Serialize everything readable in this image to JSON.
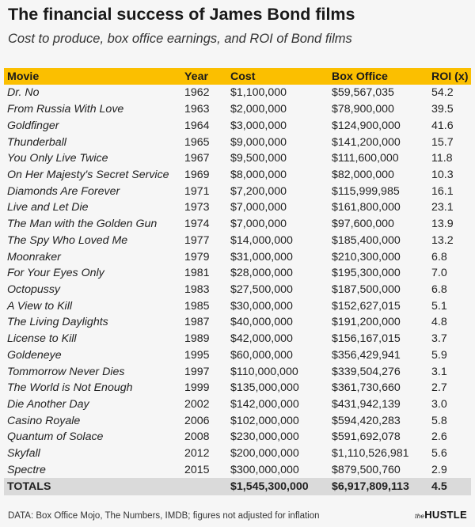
{
  "title": "The financial success of James Bond films",
  "subtitle": "Cost to produce, box office earnings, and ROI of Bond films",
  "chart_data": {
    "type": "table",
    "columns": [
      "Movie",
      "Year",
      "Cost",
      "Box Office",
      "ROI (x)"
    ],
    "rows": [
      [
        "Dr. No",
        "1962",
        "$1,100,000",
        "$59,567,035",
        "54.2"
      ],
      [
        "From Russia With Love",
        "1963",
        "$2,000,000",
        "$78,900,000",
        "39.5"
      ],
      [
        "Goldfinger",
        "1964",
        "$3,000,000",
        "$124,900,000",
        "41.6"
      ],
      [
        "Thunderball",
        "1965",
        "$9,000,000",
        "$141,200,000",
        "15.7"
      ],
      [
        "You Only Live Twice",
        "1967",
        "$9,500,000",
        "$111,600,000",
        "11.8"
      ],
      [
        "On Her Majesty's Secret Service",
        "1969",
        "$8,000,000",
        "$82,000,000",
        "10.3"
      ],
      [
        "Diamonds Are Forever",
        "1971",
        "$7,200,000",
        "$115,999,985",
        "16.1"
      ],
      [
        "Live and Let Die",
        "1973",
        "$7,000,000",
        "$161,800,000",
        "23.1"
      ],
      [
        "The Man with the Golden Gun",
        "1974",
        "$7,000,000",
        "$97,600,000",
        "13.9"
      ],
      [
        "The Spy Who Loved Me",
        "1977",
        "$14,000,000",
        "$185,400,000",
        "13.2"
      ],
      [
        "Moonraker",
        "1979",
        "$31,000,000",
        "$210,300,000",
        "6.8"
      ],
      [
        "For Your Eyes Only",
        "1981",
        "$28,000,000",
        "$195,300,000",
        "7.0"
      ],
      [
        "Octopussy",
        "1983",
        "$27,500,000",
        "$187,500,000",
        "6.8"
      ],
      [
        "A View to Kill",
        "1985",
        "$30,000,000",
        "$152,627,015",
        "5.1"
      ],
      [
        "The Living Daylights",
        "1987",
        "$40,000,000",
        "$191,200,000",
        "4.8"
      ],
      [
        "License to Kill",
        "1989",
        "$42,000,000",
        "$156,167,015",
        "3.7"
      ],
      [
        "Goldeneye",
        "1995",
        "$60,000,000",
        "$356,429,941",
        "5.9"
      ],
      [
        "Tommorrow Never Dies",
        "1997",
        "$110,000,000",
        "$339,504,276",
        "3.1"
      ],
      [
        "The World is Not Enough",
        "1999",
        "$135,000,000",
        "$361,730,660",
        "2.7"
      ],
      [
        "Die Another Day",
        "2002",
        "$142,000,000",
        "$431,942,139",
        "3.0"
      ],
      [
        "Casino Royale",
        "2006",
        "$102,000,000",
        "$594,420,283",
        "5.8"
      ],
      [
        "Quantum of Solace",
        "2008",
        "$230,000,000",
        "$591,692,078",
        "2.6"
      ],
      [
        "Skyfall",
        "2012",
        "$200,000,000",
        "$1,110,526,981",
        "5.6"
      ],
      [
        "Spectre",
        "2015",
        "$300,000,000",
        "$879,500,760",
        "2.9"
      ]
    ],
    "totals": [
      "TOTALS",
      "",
      "$1,545,300,000",
      "$6,917,809,113",
      "4.5"
    ],
    "header_color": "#fbbf00",
    "totals_color": "#dadada"
  },
  "footer": {
    "source": "DATA: Box Office Mojo, The Numbers, IMDB; figures not adjusted for inflation",
    "logo_prefix": "the",
    "logo_text": "HUSTLE"
  }
}
